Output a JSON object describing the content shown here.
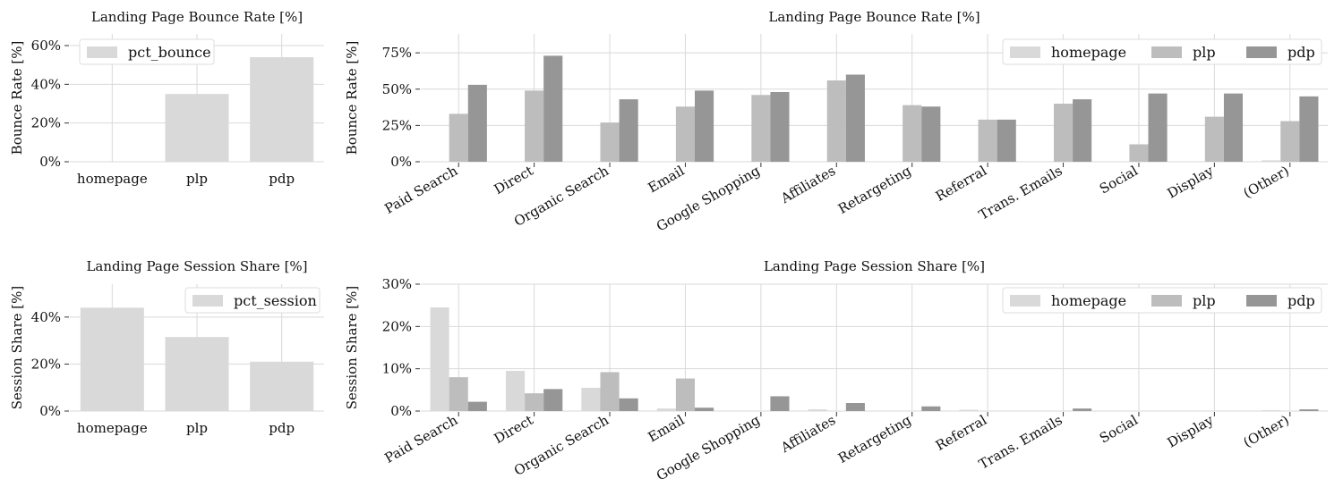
{
  "chart_data": [
    {
      "type": "bar",
      "title": "Landing Page Bounce Rate [%]",
      "ylabel": "Bounce Rate [%]",
      "categories": [
        "homepage",
        "plp",
        "pdp"
      ],
      "series": [
        {
          "name": "pct_bounce",
          "values": [
            0,
            35,
            54
          ]
        }
      ],
      "yticks": [
        "0%",
        "20%",
        "40%",
        "60%"
      ],
      "ylim": [
        0,
        66
      ],
      "grid": true,
      "legend": "top-left",
      "colors": [
        "#d9d9d9"
      ]
    },
    {
      "type": "bar",
      "title": "Landing Page Bounce Rate [%]",
      "ylabel": "Bounce Rate [%]",
      "categories": [
        "Paid Search",
        "Direct",
        "Organic Search",
        "Email",
        "Google Shopping",
        "Affiliates",
        "Retargeting",
        "Referral",
        "Trans. Emails",
        "Social",
        "Display",
        "(Other)"
      ],
      "series": [
        {
          "name": "homepage",
          "values": [
            0,
            0,
            0,
            0,
            0,
            0,
            0,
            0,
            0,
            0,
            0,
            1
          ]
        },
        {
          "name": "plp",
          "values": [
            33,
            49,
            27,
            38,
            46,
            56,
            39,
            29,
            40,
            12,
            31,
            28
          ]
        },
        {
          "name": "pdp",
          "values": [
            53,
            73,
            43,
            49,
            48,
            60,
            38,
            29,
            43,
            47,
            47,
            45
          ]
        }
      ],
      "yticks": [
        "0%",
        "25%",
        "50%",
        "75%"
      ],
      "ylim": [
        0,
        88
      ],
      "grid": true,
      "legend": "top-right",
      "colors": [
        "#d9d9d9",
        "#bdbdbd",
        "#969696"
      ]
    },
    {
      "type": "bar",
      "title": "Landing Page Session Share [%]",
      "ylabel": "Session Share [%]",
      "categories": [
        "homepage",
        "plp",
        "pdp"
      ],
      "series": [
        {
          "name": "pct_session",
          "values": [
            44,
            31.5,
            21
          ]
        }
      ],
      "yticks": [
        "0%",
        "20%",
        "40%"
      ],
      "ylim": [
        0,
        54
      ],
      "grid": true,
      "legend": "top-right",
      "colors": [
        "#d9d9d9"
      ]
    },
    {
      "type": "bar",
      "title": "Landing Page Session Share [%]",
      "ylabel": "Session Share [%]",
      "categories": [
        "Paid Search",
        "Direct",
        "Organic Search",
        "Email",
        "Google Shopping",
        "Affiliates",
        "Retargeting",
        "Referral",
        "Trans. Emails",
        "Social",
        "Display",
        "(Other)"
      ],
      "series": [
        {
          "name": "homepage",
          "values": [
            24.5,
            9.5,
            5.5,
            0.6,
            0,
            0.4,
            0,
            0.3,
            0,
            0,
            0,
            0.2
          ]
        },
        {
          "name": "plp",
          "values": [
            8,
            4.2,
            9.2,
            7.7,
            0,
            0,
            0,
            0,
            0,
            0,
            0,
            0
          ]
        },
        {
          "name": "pdp",
          "values": [
            2.2,
            5.2,
            3,
            0.8,
            3.5,
            1.9,
            1.1,
            0,
            0.6,
            0,
            0,
            0.4
          ]
        }
      ],
      "yticks": [
        "0%",
        "10%",
        "20%",
        "30%"
      ],
      "ylim": [
        0,
        30
      ],
      "grid": true,
      "legend": "top-right",
      "colors": [
        "#d9d9d9",
        "#bdbdbd",
        "#969696"
      ]
    }
  ]
}
